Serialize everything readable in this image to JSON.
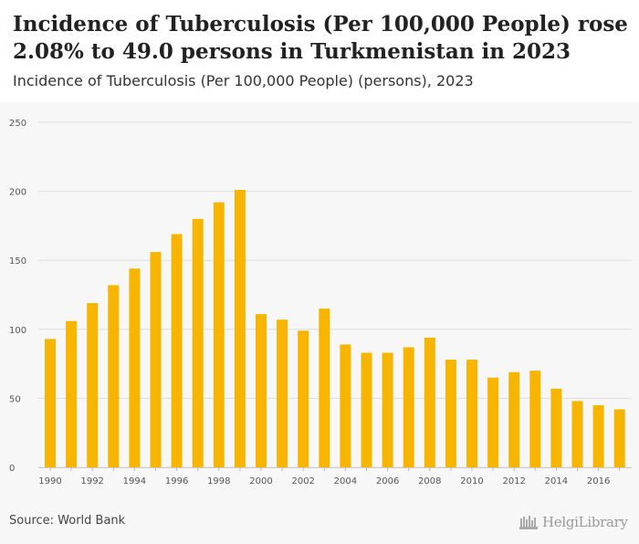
{
  "header": {
    "title": "Incidence of Tuberculosis (Per 100,000 People) rose 2.08% to 49.0 persons in Turkmenistan in 2023",
    "subtitle": "Incidence of Tuberculosis (Per 100,000 People) (persons), 2023"
  },
  "footer": {
    "source": "Source: World Bank",
    "logo_text": "HelgiLibrary"
  },
  "colors": {
    "bar": "#f7b500",
    "grid": "#dddddd",
    "background": "#f7f7f7"
  },
  "chart_data": {
    "type": "bar",
    "title": "Incidence of Tuberculosis (Per 100,000 People) rose 2.08% to 49.0 persons in Turkmenistan in 2023",
    "subtitle": "Incidence of Tuberculosis (Per 100,000 People) (persons), 2023",
    "xlabel": "",
    "ylabel": "",
    "ylim": [
      0,
      250
    ],
    "yticks": [
      0,
      50,
      100,
      150,
      200,
      250
    ],
    "grid": true,
    "legend": "none",
    "categories": [
      "1990",
      "1991",
      "1992",
      "1993",
      "1994",
      "1995",
      "1996",
      "1997",
      "1998",
      "1999",
      "2000",
      "2001",
      "2002",
      "2003",
      "2004",
      "2005",
      "2006",
      "2007",
      "2008",
      "2009",
      "2010",
      "2011",
      "2012",
      "2013",
      "2014",
      "2015",
      "2016",
      "2017"
    ],
    "xtick_labels": [
      "1990",
      "1992",
      "1994",
      "1996",
      "1998",
      "2000",
      "2002",
      "2004",
      "2006",
      "2008",
      "2010",
      "2012",
      "2014",
      "2016"
    ],
    "values": [
      93,
      106,
      119,
      132,
      144,
      156,
      169,
      180,
      192,
      201,
      111,
      107,
      99,
      115,
      89,
      83,
      83,
      87,
      94,
      78,
      78,
      65,
      69,
      70,
      57,
      48,
      45,
      42
    ]
  }
}
